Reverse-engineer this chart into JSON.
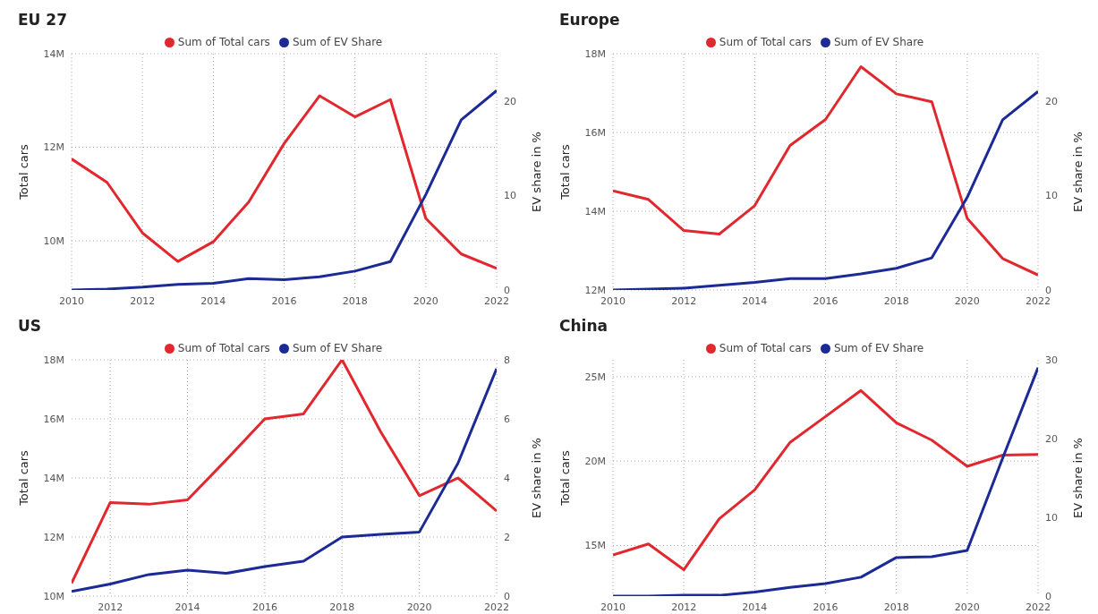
{
  "chart_data": [
    {
      "type": "line",
      "title": "EU 27",
      "ylabel": "Total cars",
      "y2label": "EV share in %",
      "x": [
        2010,
        2011,
        2012,
        2013,
        2014,
        2015,
        2016,
        2017,
        2018,
        2019,
        2020,
        2021,
        2022
      ],
      "xlim": [
        2010,
        2022
      ],
      "xticks": [
        2010,
        2012,
        2014,
        2016,
        2018,
        2020,
        2022
      ],
      "ylim": [
        8950000,
        14000000
      ],
      "yticks": [
        {
          "value": 10000000,
          "label": "10M"
        },
        {
          "value": 12000000,
          "label": "12M"
        },
        {
          "value": 14000000,
          "label": "14M"
        }
      ],
      "y2lim": [
        0,
        25
      ],
      "y2ticks": [
        0,
        10,
        20
      ],
      "grid": true,
      "legend": "top",
      "line_style": "solid",
      "marker": "none",
      "series": [
        {
          "name": "Sum of Total cars",
          "color": "#e0282e",
          "values": [
            11750000,
            11250000,
            10170000,
            9560000,
            9980000,
            10830000,
            12080000,
            13100000,
            12650000,
            13020000,
            10480000,
            9720000,
            9410000
          ]
        },
        {
          "name": "Sum of EV Share",
          "color": "#1c2a96",
          "axis": "y2",
          "values": [
            0,
            0.1,
            0.3,
            0.6,
            0.7,
            1.2,
            1.1,
            1.4,
            2.0,
            3.0,
            10.1,
            18,
            21.1
          ]
        }
      ]
    },
    {
      "type": "line",
      "title": "Europe",
      "ylabel": "Total cars",
      "y2label": "EV share in %",
      "x": [
        2010,
        2011,
        2012,
        2013,
        2014,
        2015,
        2016,
        2017,
        2018,
        2019,
        2020,
        2021,
        2022
      ],
      "xlim": [
        2010,
        2022
      ],
      "xticks": [
        2010,
        2012,
        2014,
        2016,
        2018,
        2020,
        2022
      ],
      "ylim": [
        12000000,
        18000000
      ],
      "yticks": [
        {
          "value": 12000000,
          "label": "12M"
        },
        {
          "value": 14000000,
          "label": "14M"
        },
        {
          "value": 16000000,
          "label": "16M"
        },
        {
          "value": 18000000,
          "label": "18M"
        }
      ],
      "y2lim": [
        0,
        25
      ],
      "y2ticks": [
        0,
        10,
        20
      ],
      "grid": true,
      "legend": "top",
      "line_style": "solid",
      "marker": "none",
      "series": [
        {
          "name": "Sum of Total cars",
          "color": "#e0282e",
          "values": [
            14520000,
            14300000,
            13510000,
            13420000,
            14140000,
            15670000,
            16330000,
            17670000,
            16980000,
            16780000,
            13820000,
            12800000,
            12380000
          ]
        },
        {
          "name": "Sum of EV Share",
          "color": "#1c2a96",
          "axis": "y2",
          "values": [
            0,
            0.1,
            0.2,
            0.5,
            0.8,
            1.2,
            1.2,
            1.7,
            2.3,
            3.4,
            9.8,
            18,
            21
          ]
        }
      ]
    },
    {
      "type": "line",
      "title": "US",
      "ylabel": "Total cars",
      "y2label": "EV share in %",
      "x": [
        2011,
        2012,
        2013,
        2014,
        2015,
        2016,
        2017,
        2018,
        2019,
        2020,
        2021,
        2022
      ],
      "xlim": [
        2011,
        2022
      ],
      "xticks": [
        2012,
        2014,
        2016,
        2018,
        2020,
        2022
      ],
      "ylim": [
        10000000,
        18000000
      ],
      "yticks": [
        {
          "value": 10000000,
          "label": "10M"
        },
        {
          "value": 12000000,
          "label": "12M"
        },
        {
          "value": 14000000,
          "label": "14M"
        },
        {
          "value": 16000000,
          "label": "16M"
        },
        {
          "value": 18000000,
          "label": "18M"
        }
      ],
      "y2lim": [
        0,
        8
      ],
      "y2ticks": [
        0,
        2,
        4,
        6,
        8
      ],
      "grid": true,
      "legend": "top",
      "line_style": "solid",
      "marker": "none",
      "series": [
        {
          "name": "Sum of Total cars",
          "color": "#e0282e",
          "values": [
            10440000,
            13170000,
            13110000,
            13260000,
            14610000,
            16000000,
            16170000,
            18000000,
            15560000,
            13400000,
            14000000,
            12880000
          ]
        },
        {
          "name": "Sum of EV Share",
          "color": "#1c2a96",
          "axis": "y2",
          "values": [
            0.16,
            0.41,
            0.73,
            0.88,
            0.77,
            1.0,
            1.18,
            2.0,
            2.09,
            2.17,
            4.5,
            7.7
          ]
        }
      ]
    },
    {
      "type": "line",
      "title": "China",
      "ylabel": "Total cars",
      "y2label": "EV share in %",
      "x": [
        2010,
        2011,
        2012,
        2013,
        2014,
        2015,
        2016,
        2017,
        2018,
        2019,
        2020,
        2021,
        2022
      ],
      "xlim": [
        2010,
        2022
      ],
      "xticks": [
        2010,
        2012,
        2014,
        2016,
        2018,
        2020,
        2022
      ],
      "ylim": [
        12000000,
        26000000
      ],
      "yticks": [
        {
          "value": 15000000,
          "label": "15M"
        },
        {
          "value": 20000000,
          "label": "20M"
        },
        {
          "value": 25000000,
          "label": "25M"
        }
      ],
      "y2lim": [
        0,
        30
      ],
      "y2ticks": [
        0,
        10,
        20,
        30
      ],
      "grid": true,
      "legend": "top",
      "line_style": "solid",
      "marker": "none",
      "series": [
        {
          "name": "Sum of Total cars",
          "color": "#e0282e",
          "values": [
            14430000,
            15090000,
            13560000,
            16580000,
            18290000,
            21110000,
            22640000,
            24180000,
            22270000,
            21240000,
            19690000,
            20350000,
            20390000
          ]
        },
        {
          "name": "Sum of EV Share",
          "color": "#1c2a96",
          "axis": "y2",
          "values": [
            0,
            0,
            0.1,
            0.1,
            0.5,
            1.1,
            1.6,
            2.4,
            4.9,
            5.0,
            5.8,
            17.5,
            29
          ]
        }
      ]
    }
  ]
}
